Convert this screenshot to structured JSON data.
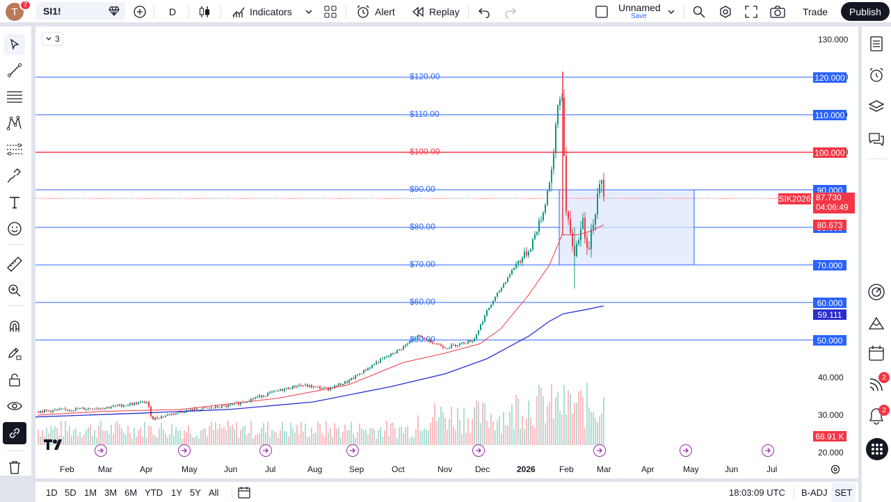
{
  "topbar": {
    "avatar_letter": "T",
    "avatar_badge": "7",
    "symbol": "SI1!",
    "interval": "D",
    "indicators_label": "Indicators",
    "alert_label": "Alert",
    "replay_label": "Replay",
    "layout_name": "Unnamed",
    "layout_save": "Save",
    "trade_label": "Trade",
    "publish_label": "Publish"
  },
  "chart": {
    "collapse_count": "3",
    "price_axis": [
      "130.000",
      "120.000",
      "110.000",
      "100.000",
      "90.000",
      "80.000",
      "70.000",
      "60.000",
      "50.000",
      "40.000",
      "30.000",
      "20.000"
    ],
    "time_axis": [
      "Feb",
      "Mar",
      "Apr",
      "May",
      "Jun",
      "Jul",
      "Aug",
      "Sep",
      "Oct",
      "Nov",
      "Dec",
      "2026",
      "Feb",
      "Mar",
      "Apr",
      "May",
      "Jun",
      "Jul"
    ],
    "hline_labels": [
      "$120.00",
      "$110.00",
      "$100.00",
      "$90.00",
      "$80.00",
      "$70.00",
      "$60.00",
      "$50.00"
    ],
    "hline_badges": [
      "120.000",
      "110.000",
      "100.000",
      "90.000",
      "80.000",
      "70.000",
      "60.000",
      "50.000"
    ],
    "symbol_tag": "SIK2026",
    "last_price": "87.730",
    "countdown": "04:06:49",
    "ma_short_value": "80.673",
    "ma_long_value": "59.111",
    "volume_value": "68.91 K",
    "logo_text": "TV",
    "colors": {
      "up": "#089981",
      "down": "#f23645",
      "hline": "#2962ff",
      "red_hline": "#f23645",
      "ma_short": "#f23645",
      "ma_long": "#2a2ecd",
      "rect_fill": "#dbe5fb"
    }
  },
  "bottombar": {
    "ranges": [
      "1D",
      "5D",
      "1M",
      "3M",
      "6M",
      "YTD",
      "1Y",
      "5Y",
      "All"
    ],
    "clock": "18:03:09 UTC",
    "badj": "B-ADJ",
    "session": "SET"
  },
  "right_badges": {
    "feed": "2",
    "alerts": "2"
  }
}
